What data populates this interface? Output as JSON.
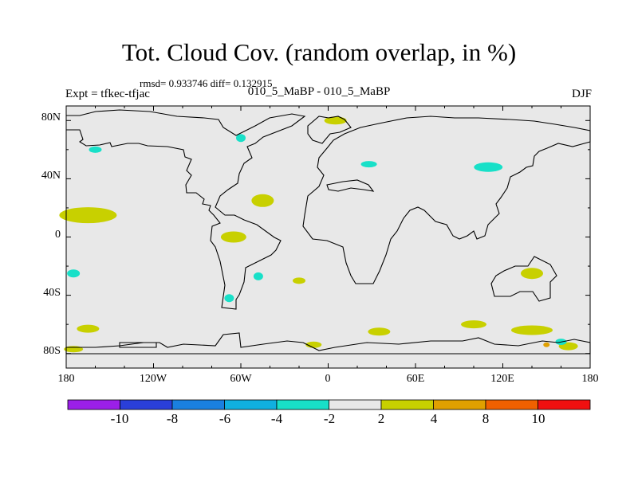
{
  "title": "Tot. Cloud Cov. (random overlap, in %)",
  "stats": "rmsd= 0.933746 diff= 0.132915",
  "expt": "Expt = tfkec-tfjac",
  "subtitle": "010_5_MaBP - 010_5_MaBP",
  "season": "DJF",
  "x_ticks": [
    "180",
    "120W",
    "60W",
    "0",
    "60E",
    "120E",
    "180"
  ],
  "y_ticks": [
    "80N",
    "40N",
    "0",
    "40S",
    "80S"
  ],
  "colorbar": {
    "colors": [
      "#9b1fe8",
      "#2a3fd9",
      "#1a80e0",
      "#10b0e0",
      "#18e0c8",
      "#e8e8e8",
      "#c8d000",
      "#e0a000",
      "#f06000",
      "#f01010"
    ],
    "labels": [
      "-10",
      "-8",
      "-6",
      "-4",
      "-2",
      "2",
      "4",
      "8",
      "10"
    ]
  },
  "map": {
    "background": "#e8e8e8",
    "coastline_color": "#000000",
    "anomaly_regions": [
      {
        "lon": -165,
        "lat": 15,
        "color": "#c8d000"
      },
      {
        "lon": -45,
        "lat": 25,
        "color": "#c8d000"
      },
      {
        "lon": -65,
        "lat": 0,
        "color": "#c8d000"
      },
      {
        "lon": -20,
        "lat": -30,
        "color": "#c8d000"
      },
      {
        "lon": 5,
        "lat": 80,
        "color": "#c8d000"
      },
      {
        "lon": 140,
        "lat": -25,
        "color": "#c8d000"
      },
      {
        "lon": 140,
        "lat": -64,
        "color": "#c8d000"
      },
      {
        "lon": 100,
        "lat": -60,
        "color": "#c8d000"
      },
      {
        "lon": 35,
        "lat": -65,
        "color": "#c8d000"
      },
      {
        "lon": -165,
        "lat": -63,
        "color": "#c8d000"
      },
      {
        "lon": -175,
        "lat": -77,
        "color": "#c8d000"
      },
      {
        "lon": -10,
        "lat": -74,
        "color": "#c8d000"
      },
      {
        "lon": 165,
        "lat": -75,
        "color": "#c8d000"
      },
      {
        "lon": -160,
        "lat": 60,
        "color": "#18e0c8"
      },
      {
        "lon": -60,
        "lat": 68,
        "color": "#18e0c8"
      },
      {
        "lon": 28,
        "lat": 50,
        "color": "#18e0c8"
      },
      {
        "lon": 110,
        "lat": 48,
        "color": "#18e0c8"
      },
      {
        "lon": -175,
        "lat": -25,
        "color": "#18e0c8"
      },
      {
        "lon": -48,
        "lat": -27,
        "color": "#18e0c8"
      },
      {
        "lon": -68,
        "lat": -42,
        "color": "#18e0c8"
      },
      {
        "lon": 160,
        "lat": -72,
        "color": "#18e0c8"
      },
      {
        "lon": 150,
        "lat": -74,
        "color": "#e0a000"
      }
    ]
  }
}
